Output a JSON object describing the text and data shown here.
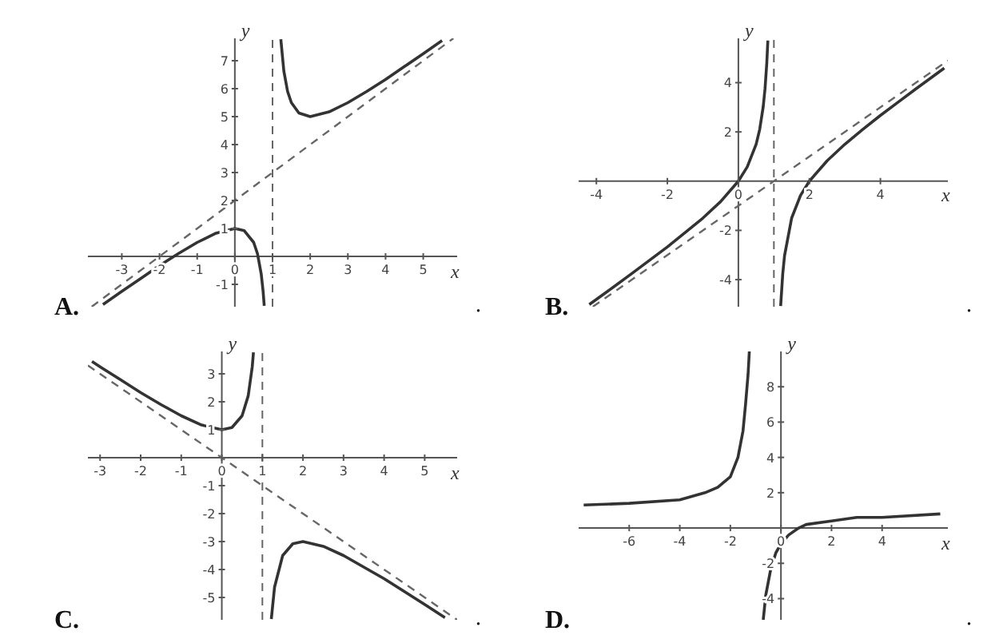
{
  "chart_data": [
    {
      "type": "line",
      "title": "A.",
      "xlabel": "x",
      "ylabel": "y",
      "annotations": [
        "."
      ],
      "xlim": [
        -3.9,
        5.9
      ],
      "ylim": [
        -1.8,
        7.8
      ],
      "xticks": [
        -3,
        -2,
        -1,
        0,
        1,
        2,
        3,
        4,
        5
      ],
      "yticks": [
        -1,
        1,
        2,
        3,
        4,
        5,
        6,
        7
      ],
      "series": [
        {
          "color": "#333333",
          "x": [
            -3.5,
            -3,
            -2.5,
            -2,
            -1.5,
            -1,
            -0.5,
            0,
            0.25,
            0.5,
            0.6,
            0.7,
            0.75,
            0.78,
            null,
            1.22,
            1.3,
            1.4,
            1.5,
            1.7,
            2,
            2.5,
            3,
            3.5,
            4,
            4.5,
            5,
            5.5
          ],
          "values": [
            -1.72,
            -1.25,
            -0.79,
            -0.33,
            0.1,
            0.5,
            0.83,
            1,
            0.92,
            0.5,
            0.1,
            -0.63,
            -1.25,
            -1.77,
            null,
            7.77,
            6.63,
            5.9,
            5.5,
            5.13,
            5,
            5.17,
            5.5,
            5.9,
            6.33,
            6.79,
            7.25,
            7.72
          ]
        },
        {
          "color": "#666666",
          "line_style": "dashed",
          "x": [
            -3.8,
            5.8
          ],
          "values": [
            -1.8,
            7.8
          ]
        }
      ],
      "ref_lines": [
        {
          "axis": "x",
          "value": 1,
          "color": "#666666",
          "line_style": "dashed"
        }
      ]
    },
    {
      "type": "line",
      "title": "B.",
      "xlabel": "x",
      "ylabel": "y",
      "annotations": [
        "."
      ],
      "xlim": [
        -4.5,
        5.9
      ],
      "ylim": [
        -5.1,
        5.8
      ],
      "xticks": [
        -4,
        -2,
        0,
        2,
        4
      ],
      "yticks": [
        -4,
        -2,
        2,
        4
      ],
      "series": [
        {
          "color": "#333333",
          "x": [
            -4.2,
            -3.5,
            -3,
            -2,
            -1,
            -0.5,
            0,
            0.25,
            0.5,
            0.6,
            0.7,
            0.75,
            0.8,
            0.83,
            null,
            1.19,
            1.25,
            1.3,
            1.5,
            1.75,
            2,
            2.5,
            3,
            3.5,
            4,
            4.5,
            5,
            5.8
          ],
          "values": [
            -5.01,
            -4.28,
            -3.75,
            -2.67,
            -1.5,
            -0.83,
            0,
            0.58,
            1.5,
            2.1,
            3.03,
            3.75,
            4.8,
            5.71,
            null,
            -5.07,
            -3.75,
            -3.03,
            -1.5,
            -0.58,
            0,
            0.83,
            1.5,
            2.1,
            2.67,
            3.21,
            3.75,
            4.59
          ]
        },
        {
          "color": "#666666",
          "line_style": "dashed",
          "x": [
            -4.1,
            5.9
          ],
          "values": [
            -5.1,
            4.9
          ]
        }
      ],
      "ref_lines": [
        {
          "axis": "x",
          "value": 1,
          "color": "#666666",
          "line_style": "dashed"
        }
      ]
    },
    {
      "type": "line",
      "title": "C.",
      "xlabel": "x",
      "ylabel": "y",
      "annotations": [
        "."
      ],
      "xlim": [
        -3.3,
        5.8
      ],
      "ylim": [
        -5.8,
        3.8
      ],
      "xticks": [
        -3,
        -2,
        -1,
        0,
        1,
        2,
        3,
        4,
        5
      ],
      "yticks": [
        -5,
        -4,
        -3,
        -2,
        -1,
        1,
        2,
        3
      ],
      "series": [
        {
          "color": "#333333",
          "x": [
            -3.2,
            -3,
            -2.5,
            -2,
            -1.5,
            -1,
            -0.5,
            0,
            0.25,
            0.5,
            0.65,
            0.75,
            0.78,
            null,
            1.22,
            1.3,
            1.5,
            1.75,
            2,
            2.5,
            3,
            4,
            5,
            5.5
          ],
          "values": [
            3.44,
            3.25,
            2.79,
            2.33,
            1.9,
            1.5,
            1.17,
            1,
            1.08,
            1.5,
            2.21,
            3.25,
            3.77,
            null,
            -5.77,
            -4.63,
            -3.5,
            -3.08,
            -3,
            -3.17,
            -3.5,
            -4.33,
            -5.25,
            -5.72
          ]
        },
        {
          "color": "#666666",
          "line_style": "dashed",
          "x": [
            -3.3,
            5.8
          ],
          "values": [
            3.3,
            -5.8
          ]
        }
      ],
      "ref_lines": [
        {
          "axis": "x",
          "value": 1,
          "color": "#666666",
          "line_style": "dashed"
        }
      ]
    },
    {
      "type": "line",
      "title": "D.",
      "xlabel": "x",
      "ylabel": "y",
      "annotations": [
        "."
      ],
      "xlim": [
        -8,
        6.6
      ],
      "ylim": [
        -5.2,
        10
      ],
      "xticks": [
        -6,
        -4,
        -2,
        0,
        2,
        4
      ],
      "yticks": [
        -4,
        -2,
        2,
        4,
        6,
        8
      ],
      "series": [
        {
          "color": "#333333",
          "x": [
            -7.8,
            -6,
            -4,
            -3,
            -2.5,
            -2,
            -1.7,
            -1.5,
            -1.4,
            -1.3,
            -1.25,
            null,
            -0.7,
            -0.6,
            -0.4,
            -0.2,
            0,
            0.3,
            0.7,
            1,
            2,
            3,
            4,
            6.3
          ],
          "values": [
            1.3,
            1.4,
            1.6,
            2,
            2.3,
            2.9,
            4,
            5.5,
            7,
            8.7,
            10,
            null,
            -5.2,
            -3.8,
            -2.3,
            -1.4,
            -0.9,
            -0.4,
            0,
            0.2,
            0.4,
            0.6,
            0.6,
            0.8
          ]
        }
      ]
    }
  ]
}
